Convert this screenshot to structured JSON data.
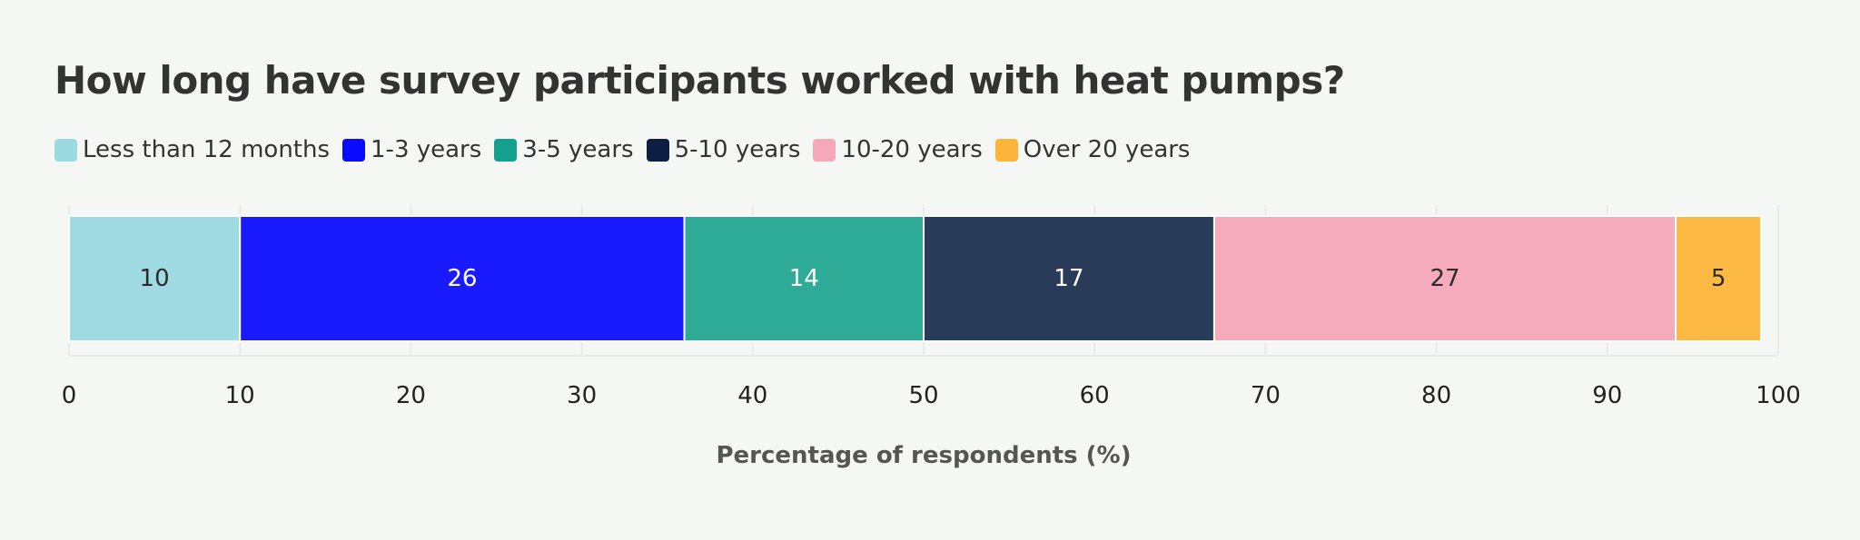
{
  "chart_data": {
    "type": "bar",
    "orientation": "horizontal",
    "stacked": true,
    "title": "How long have survey participants worked with heat pumps?",
    "xlabel": "Percentage of respondents (%)",
    "ylabel": "",
    "xlim": [
      0,
      100
    ],
    "xticks": [
      "0",
      "10",
      "20",
      "30",
      "40",
      "50",
      "60",
      "70",
      "80",
      "90",
      "100"
    ],
    "grid": true,
    "legend_position": "top-left",
    "series": [
      {
        "name": "Less than 12 months",
        "value": 10,
        "label": "10",
        "color": "#a0dae3",
        "text_color": "#2b2b2b"
      },
      {
        "name": "1-3 years",
        "value": 26,
        "label": "26",
        "color": "#1a1aff",
        "text_color": "#ffffff"
      },
      {
        "name": "3-5 years",
        "value": 14,
        "label": "14",
        "color": "#2eab96",
        "text_color": "#ffffff"
      },
      {
        "name": "5-10 years",
        "value": 17,
        "label": "17",
        "color": "#283c5a",
        "text_color": "#ffffff"
      },
      {
        "name": "10-20 years",
        "value": 27,
        "label": "27",
        "color": "#f5abbc",
        "text_color": "#2b2b2b"
      },
      {
        "name": "Over 20 years",
        "value": 5,
        "label": "5",
        "color": "#fcb944",
        "text_color": "#2b2b2b"
      }
    ],
    "legend_swatch_colors": [
      "#9cdae1",
      "#0a0aff",
      "#13a08c",
      "#0c1f42",
      "#f7a8b8",
      "#fbb53b"
    ]
  }
}
